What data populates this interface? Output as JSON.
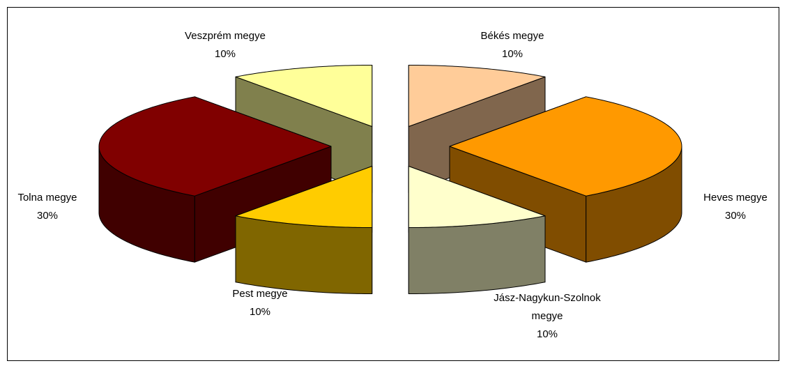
{
  "chart_data": {
    "type": "pie3d",
    "categories": [
      "Békés megye",
      "Heves megye",
      "Jász-Nagykun-Szolnok megye",
      "Pest megye",
      "Tolna megye",
      "Veszprém megye"
    ],
    "values": [
      10,
      30,
      10,
      10,
      30,
      10
    ],
    "value_labels": [
      "10%",
      "30%",
      "10%",
      "10%",
      "30%",
      "10%"
    ],
    "colors": [
      "#FFCC99",
      "#FF9900",
      "#FFFFCC",
      "#FFCC00",
      "#800000",
      "#FFFF99"
    ]
  }
}
